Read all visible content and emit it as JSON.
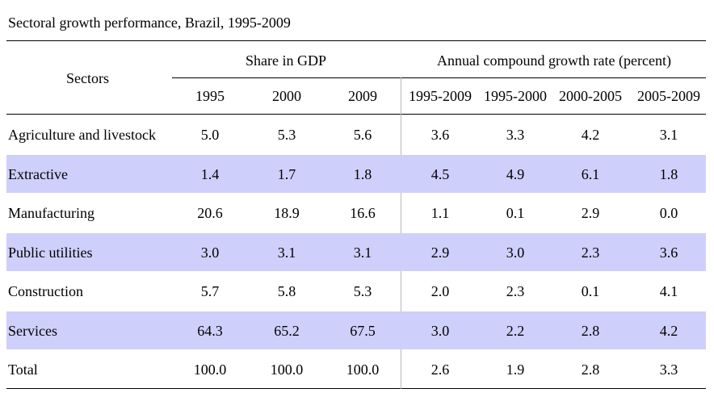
{
  "table": {
    "title": "Sectoral growth performance, Brazil, 1995-2009",
    "sectors_header": "Sectors",
    "group_share": "Share in GDP",
    "group_growth": "Annual compound growth rate (percent)",
    "columns": [
      "1995",
      "2000",
      "2009",
      "1995-2009",
      "1995-2000",
      "2000-2005",
      "2005-2009"
    ],
    "band_color": "#cfcffc",
    "rows": [
      {
        "sector": "Agriculture and livestock",
        "values": [
          "5.0",
          "5.3",
          "5.6",
          "3.6",
          "3.3",
          "4.2",
          "3.1"
        ]
      },
      {
        "sector": "Extractive",
        "values": [
          "1.4",
          "1.7",
          "1.8",
          "4.5",
          "4.9",
          "6.1",
          "1.8"
        ]
      },
      {
        "sector": "Manufacturing",
        "values": [
          "20.6",
          "18.9",
          "16.6",
          "1.1",
          "0.1",
          "2.9",
          "0.0"
        ]
      },
      {
        "sector": "Public utilities",
        "values": [
          "3.0",
          "3.1",
          "3.1",
          "2.9",
          "3.0",
          "2.3",
          "3.6"
        ]
      },
      {
        "sector": "Construction",
        "values": [
          "5.7",
          "5.8",
          "5.3",
          "2.0",
          "2.3",
          "0.1",
          "4.1"
        ]
      },
      {
        "sector": "Services",
        "values": [
          "64.3",
          "65.2",
          "67.5",
          "3.0",
          "2.2",
          "2.8",
          "4.2"
        ]
      },
      {
        "sector": "Total",
        "values": [
          "100.0",
          "100.0",
          "100.0",
          "2.6",
          "1.9",
          "2.8",
          "3.3"
        ]
      }
    ]
  }
}
